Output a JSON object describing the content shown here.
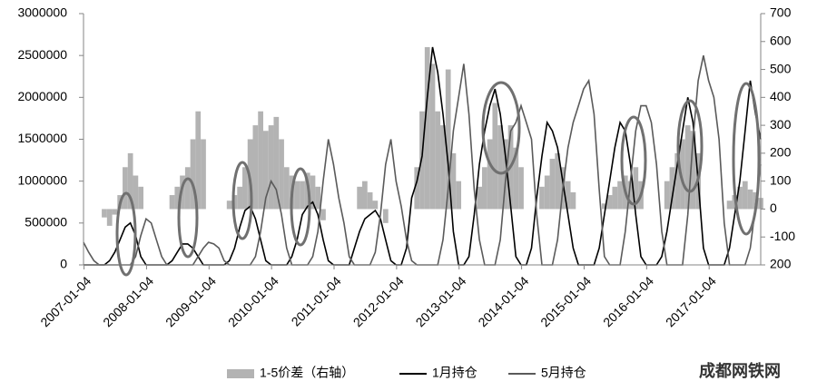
{
  "chart_data": {
    "type": "combo",
    "watermark": "成都网铁网",
    "x": [
      "2007-01",
      "2007-02",
      "2007-03",
      "2007-04",
      "2007-05",
      "2007-06",
      "2007-07",
      "2007-08",
      "2007-09",
      "2007-10",
      "2007-11",
      "2007-12",
      "2008-01",
      "2008-02",
      "2008-03",
      "2008-04",
      "2008-05",
      "2008-06",
      "2008-07",
      "2008-08",
      "2008-09",
      "2008-10",
      "2008-11",
      "2008-12",
      "2009-01",
      "2009-02",
      "2009-03",
      "2009-04",
      "2009-05",
      "2009-06",
      "2009-07",
      "2009-08",
      "2009-09",
      "2009-10",
      "2009-11",
      "2009-12",
      "2010-01",
      "2010-02",
      "2010-03",
      "2010-04",
      "2010-05",
      "2010-06",
      "2010-07",
      "2010-08",
      "2010-09",
      "2010-10",
      "2010-11",
      "2010-12",
      "2011-01",
      "2011-02",
      "2011-03",
      "2011-04",
      "2011-05",
      "2011-06",
      "2011-07",
      "2011-08",
      "2011-09",
      "2011-10",
      "2011-11",
      "2011-12",
      "2012-01",
      "2012-02",
      "2012-03",
      "2012-04",
      "2012-05",
      "2012-06",
      "2012-07",
      "2012-08",
      "2012-09",
      "2012-10",
      "2012-11",
      "2012-12",
      "2013-01",
      "2013-02",
      "2013-03",
      "2013-04",
      "2013-05",
      "2013-06",
      "2013-07",
      "2013-08",
      "2013-09",
      "2013-10",
      "2013-11",
      "2013-12",
      "2014-01",
      "2014-02",
      "2014-03",
      "2014-04",
      "2014-05",
      "2014-06",
      "2014-07",
      "2014-08",
      "2014-09",
      "2014-10",
      "2014-11",
      "2014-12",
      "2015-01",
      "2015-02",
      "2015-03",
      "2015-04",
      "2015-05",
      "2015-06",
      "2015-07",
      "2015-08",
      "2015-09",
      "2015-10",
      "2015-11",
      "2015-12",
      "2016-01",
      "2016-02",
      "2016-03",
      "2016-04",
      "2016-05",
      "2016-06",
      "2016-07",
      "2016-08",
      "2016-09",
      "2016-10",
      "2016-11",
      "2016-12",
      "2017-01",
      "2017-02",
      "2017-03",
      "2017-04",
      "2017-05",
      "2017-06",
      "2017-07",
      "2017-08",
      "2017-09",
      "2017-10",
      "2017-11"
    ],
    "xlim": [
      "2007-01",
      "2017-11"
    ],
    "xticks": [
      "2007-01-04",
      "2008-01-04",
      "2009-01-04",
      "2010-01-04",
      "2011-01-04",
      "2012-01-04",
      "2013-01-04",
      "2014-01-04",
      "2015-01-04",
      "2016-01-04",
      "2017-01-04"
    ],
    "ylim": [
      0,
      3000000
    ],
    "yticks": [
      0,
      500000,
      1000000,
      1500000,
      2000000,
      2500000,
      3000000
    ],
    "y2lim": [
      -200,
      700
    ],
    "y2ticks": [
      {
        "value": -200,
        "label": "200"
      },
      -100,
      0,
      100,
      200,
      300,
      400,
      500,
      600,
      700
    ],
    "series": [
      {
        "name": "1-5价差（右轴）",
        "type": "bar",
        "axis": "y2",
        "color": "#b3b3b3",
        "values": [
          null,
          null,
          null,
          null,
          -30,
          -60,
          -20,
          50,
          150,
          200,
          120,
          80,
          null,
          null,
          null,
          null,
          null,
          50,
          80,
          120,
          150,
          250,
          350,
          250,
          null,
          null,
          null,
          null,
          30,
          50,
          80,
          150,
          250,
          300,
          350,
          280,
          300,
          330,
          250,
          150,
          120,
          100,
          100,
          130,
          120,
          80,
          -40,
          null,
          null,
          null,
          null,
          null,
          null,
          80,
          100,
          60,
          30,
          0,
          -50,
          null,
          null,
          null,
          null,
          null,
          150,
          350,
          580,
          520,
          350,
          300,
          500,
          200,
          100,
          null,
          null,
          null,
          80,
          150,
          250,
          380,
          300,
          250,
          300,
          220,
          150,
          null,
          null,
          null,
          80,
          120,
          180,
          200,
          150,
          100,
          60,
          null,
          null,
          null,
          null,
          null,
          20,
          50,
          80,
          100,
          120,
          100,
          150,
          100,
          null,
          null,
          null,
          null,
          100,
          150,
          200,
          250,
          300,
          280,
          200,
          null,
          null,
          null,
          null,
          null,
          30,
          50,
          80,
          100,
          70,
          60,
          40
        ]
      },
      {
        "name": "1月持仓",
        "type": "line",
        "color": "#000000",
        "values": [
          0,
          0,
          0,
          0,
          0,
          50000,
          150000,
          300000,
          450000,
          500000,
          350000,
          100000,
          0,
          0,
          0,
          0,
          0,
          50000,
          150000,
          250000,
          250000,
          200000,
          100000,
          0,
          0,
          0,
          0,
          0,
          50000,
          200000,
          450000,
          650000,
          700000,
          550000,
          300000,
          50000,
          0,
          0,
          0,
          0,
          100000,
          300000,
          600000,
          700000,
          750000,
          600000,
          300000,
          50000,
          0,
          0,
          0,
          0,
          200000,
          400000,
          550000,
          600000,
          650000,
          550000,
          300000,
          50000,
          0,
          0,
          200000,
          800000,
          1000000,
          1300000,
          2000000,
          2600000,
          2300000,
          1800000,
          1200000,
          400000,
          0,
          0,
          100000,
          600000,
          1200000,
          1600000,
          1900000,
          2100000,
          1800000,
          1300000,
          700000,
          100000,
          0,
          0,
          200000,
          800000,
          1300000,
          1700000,
          1600000,
          1400000,
          1000000,
          600000,
          200000,
          0,
          0,
          0,
          0,
          200000,
          600000,
          1000000,
          1400000,
          1700000,
          1600000,
          1200000,
          600000,
          100000,
          0,
          0,
          0,
          100000,
          400000,
          800000,
          1200000,
          1600000,
          2000000,
          1700000,
          1000000,
          200000,
          0,
          0,
          0,
          0,
          200000,
          600000,
          1000000,
          1600000,
          2200000,
          1800000,
          1500000
        ]
      },
      {
        "name": "5月持仓",
        "type": "line",
        "color": "#5a5a5a",
        "values": [
          270000,
          150000,
          50000,
          0,
          0,
          0,
          0,
          0,
          0,
          0,
          100000,
          350000,
          550000,
          500000,
          300000,
          100000,
          0,
          0,
          0,
          0,
          0,
          0,
          100000,
          200000,
          270000,
          250000,
          200000,
          50000,
          0,
          0,
          0,
          0,
          0,
          100000,
          400000,
          800000,
          1000000,
          900000,
          600000,
          200000,
          0,
          0,
          0,
          0,
          100000,
          400000,
          1000000,
          1500000,
          1200000,
          800000,
          500000,
          100000,
          0,
          0,
          0,
          0,
          150000,
          600000,
          1200000,
          1500000,
          1000000,
          700000,
          300000,
          50000,
          0,
          0,
          0,
          0,
          0,
          300000,
          900000,
          1600000,
          2000000,
          2400000,
          1800000,
          900000,
          300000,
          0,
          0,
          0,
          300000,
          1000000,
          1600000,
          1700000,
          1900000,
          1700000,
          1500000,
          600000,
          0,
          0,
          0,
          300000,
          900000,
          1400000,
          1700000,
          1900000,
          2100000,
          2200000,
          1800000,
          900000,
          100000,
          0,
          0,
          0,
          400000,
          1000000,
          1600000,
          1900000,
          1900000,
          1700000,
          1200000,
          400000,
          0,
          0,
          0,
          0,
          600000,
          1500000,
          2200000,
          2500000,
          2200000,
          2000000,
          1500000,
          500000,
          0,
          0,
          0,
          0,
          200000,
          700000,
          1200000
        ]
      }
    ]
  }
}
